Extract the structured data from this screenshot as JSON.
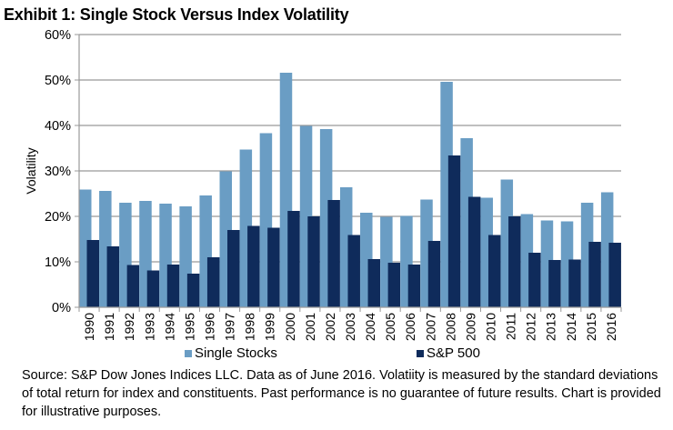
{
  "chart_data": {
    "type": "bar",
    "title": "Exhibit 1: Single Stock Versus Index Volatility",
    "ylabel": "Volatility",
    "xlabel": "",
    "ylim": [
      0,
      60
    ],
    "yticks": [
      "0%",
      "10%",
      "20%",
      "30%",
      "40%",
      "50%",
      "60%"
    ],
    "grid": true,
    "legend_position": "bottom",
    "categories": [
      "1990",
      "1991",
      "1992",
      "1993",
      "1994",
      "1995",
      "1996",
      "1997",
      "1998",
      "1999",
      "2000",
      "2001",
      "2002",
      "2003",
      "2004",
      "2005",
      "2006",
      "2007",
      "2008",
      "2009",
      "2010",
      "2011",
      "2012",
      "2013",
      "2014",
      "2015",
      "2016"
    ],
    "series": [
      {
        "name": "Single Stocks",
        "color": "#6a9dc4",
        "values": [
          25.9,
          25.6,
          23.0,
          23.4,
          22.8,
          22.2,
          24.6,
          29.9,
          34.7,
          38.3,
          51.6,
          39.9,
          39.2,
          26.4,
          20.8,
          19.9,
          20.1,
          23.7,
          49.6,
          37.2,
          24.1,
          28.1,
          20.5,
          19.1,
          18.9,
          23.0,
          25.3
        ]
      },
      {
        "name": "S&P 500",
        "color": "#0f2b5b",
        "values": [
          14.8,
          13.4,
          9.3,
          8.1,
          9.4,
          7.4,
          11.0,
          17.0,
          17.9,
          17.5,
          21.2,
          20.0,
          23.6,
          15.9,
          10.6,
          9.8,
          9.4,
          14.6,
          33.4,
          24.3,
          15.9,
          20.0,
          12.0,
          10.4,
          10.5,
          14.4,
          14.2
        ]
      }
    ]
  },
  "source_note": "Source: S&P Dow Jones Indices LLC.  Data as of June 2016.  Volatiity is measured by the standard deviations of total return for index and constituents.  Past performance is no guarantee of future results. Chart is provided for illustrative purposes."
}
